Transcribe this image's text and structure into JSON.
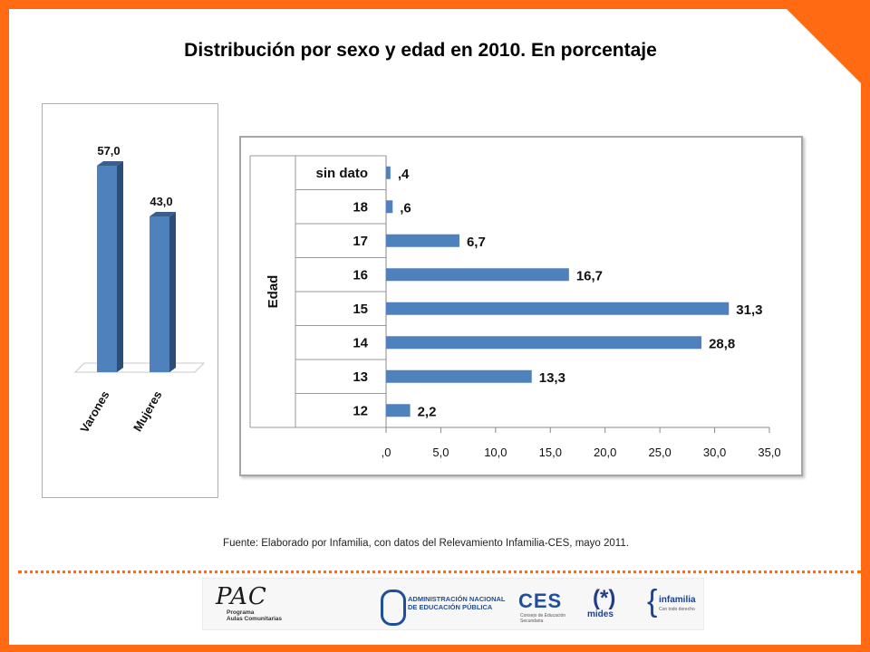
{
  "title": "Distribución por  sexo y edad en 2010. En porcentaje",
  "source": "Fuente: Elaborado por Infamilia, con datos del Relevamiento Infamilia-CES, mayo 2011.",
  "colors": {
    "bar_front": "#4f81bd",
    "bar_side": "#2c4d75",
    "bar_top": "#3a5f8f",
    "frame": "#ff6a13"
  },
  "chart_data": [
    {
      "type": "bar",
      "orientation": "vertical",
      "style": "3d-column",
      "categories": [
        "Varones",
        "Mujeres"
      ],
      "values": [
        57.0,
        43.0
      ],
      "data_labels": [
        "57,0",
        "43,0"
      ],
      "ylim": [
        0,
        57
      ]
    },
    {
      "type": "bar",
      "orientation": "horizontal",
      "ylabel": "Edad",
      "categories": [
        "sin dato",
        "18",
        "17",
        "16",
        "15",
        "14",
        "13",
        "12"
      ],
      "values": [
        0.4,
        0.6,
        6.7,
        16.7,
        31.3,
        28.8,
        13.3,
        2.2
      ],
      "data_labels": [
        ",4",
        ",6",
        "6,7",
        "16,7",
        "31,3",
        "28,8",
        "13,3",
        "2,2"
      ],
      "xlim": [
        0,
        35
      ],
      "xticks": [
        0,
        5,
        10,
        15,
        20,
        25,
        30,
        35
      ],
      "xtick_labels": [
        ",0",
        "5,0",
        "10,0",
        "15,0",
        "20,0",
        "25,0",
        "30,0",
        "35,0"
      ],
      "grid": false,
      "legend": "none"
    }
  ],
  "logos": {
    "pac": "PAC",
    "pac_line1": "Programa",
    "pac_line2": "Aulas Comunitarias",
    "anep_line1": "ADMINISTRACIÓN NACIONAL",
    "anep_line2": "DE EDUCACIÓN PÚBLICA",
    "ces": "CES",
    "ces_line1": "Consejo de Educación",
    "ces_line2": "Secundaria",
    "mides_mark": "(*)",
    "mides": "mides",
    "infamilia": "infamilia",
    "infamilia_sub": "Con todo derecho"
  }
}
